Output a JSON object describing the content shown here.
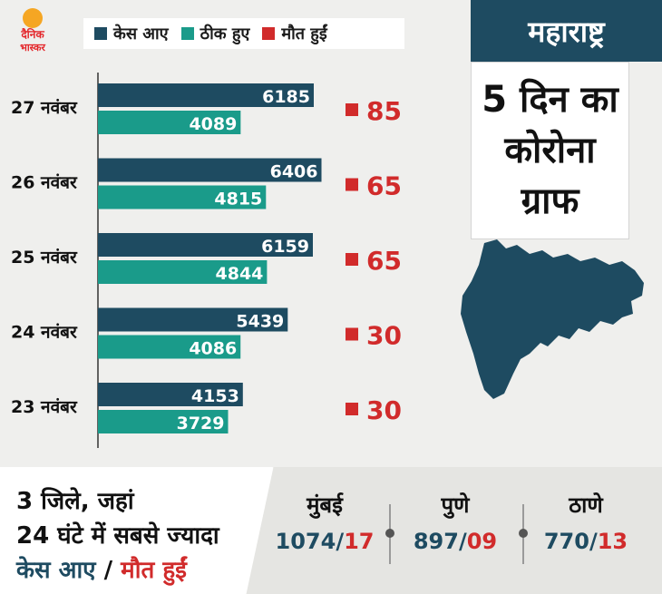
{
  "brand": {
    "line1": "दैनिक",
    "line2": "भास्कर",
    "color": "#e4262a",
    "sun_color": "#f5a623"
  },
  "legend": {
    "cases": "केस आए",
    "recovered": "ठीक हुए",
    "deaths": "मौत हुईं"
  },
  "colors": {
    "cases": "#1e4b61",
    "recovered": "#1a9b8a",
    "deaths": "#d12b2b"
  },
  "state_label": "महाराष्ट्र",
  "headline": [
    "5 दिन का",
    "कोरोना",
    "ग्राफ"
  ],
  "chart_data": {
    "type": "bar",
    "orientation": "horizontal",
    "categories": [
      "27 नवंबर",
      "26 नवंबर",
      "25 नवंबर",
      "24 नवंबर",
      "23 नवंबर"
    ],
    "series": [
      {
        "name": "केस आए",
        "values": [
          6185,
          6406,
          6159,
          5439,
          4153
        ]
      },
      {
        "name": "ठीक हुए",
        "values": [
          4089,
          4815,
          4844,
          4086,
          3729
        ]
      },
      {
        "name": "मौत हुईं",
        "values": [
          85,
          65,
          65,
          30,
          30
        ]
      }
    ],
    "xlim": [
      0,
      7000
    ],
    "grid": false,
    "legend_position": "top"
  },
  "bottom": {
    "title_line1": "3 जिले, जहां",
    "title_line2": "24 घंटे में सबसे ज्यादा",
    "title_cases": "केस आए",
    "title_slash": "/",
    "title_deaths": "मौत हुईं",
    "cities": [
      {
        "name": "मुंबई",
        "cases": "1074",
        "deaths": "17"
      },
      {
        "name": "पुणे",
        "cases": "897",
        "deaths": "09"
      },
      {
        "name": "ठाणे",
        "cases": "770",
        "deaths": "13"
      }
    ],
    "slash": "/"
  }
}
